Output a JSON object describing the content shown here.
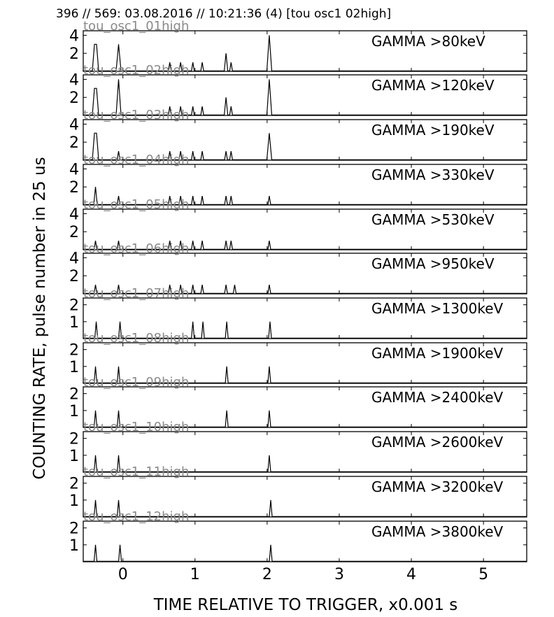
{
  "chart_data": {
    "type": "line",
    "title": "396 // 569:   03.08.2016 // 10:21:36 (4)  [tou osc1 02high]",
    "xlabel": "TIME RELATIVE TO TRIGGER,   x0.001 s",
    "ylabel": "COUNTING RATE,    pulse number in 25 us",
    "xlim": [
      -0.55,
      5.6
    ],
    "x_ticks": [
      "0",
      "1",
      "2",
      "3",
      "4",
      "5"
    ],
    "x_tick_values": [
      0,
      1,
      2,
      3,
      4,
      5
    ],
    "grid": false,
    "panels": [
      {
        "label": "GAMMA >80keV",
        "trace": "tou_osc1_01high",
        "ylim": [
          0,
          4.5
        ],
        "yticks": [
          2,
          4
        ],
        "peaks": [
          [
            -0.38,
            3
          ],
          [
            -0.06,
            3
          ],
          [
            0.65,
            1
          ],
          [
            0.8,
            1
          ],
          [
            0.97,
            1
          ],
          [
            1.1,
            1
          ],
          [
            1.43,
            2
          ],
          [
            1.5,
            1
          ],
          [
            2.03,
            4
          ]
        ]
      },
      {
        "label": "GAMMA >120keV",
        "trace": "tou_osc1_02high",
        "ylim": [
          0,
          4.5
        ],
        "yticks": [
          2,
          4
        ],
        "peaks": [
          [
            -0.38,
            3
          ],
          [
            -0.06,
            4
          ],
          [
            0.65,
            1
          ],
          [
            0.8,
            1
          ],
          [
            0.97,
            1
          ],
          [
            1.1,
            1
          ],
          [
            1.43,
            2
          ],
          [
            1.5,
            1
          ],
          [
            2.03,
            4
          ]
        ]
      },
      {
        "label": "GAMMA >190keV",
        "trace": "tou_osc1_03high",
        "ylim": [
          0,
          4.5
        ],
        "yticks": [
          2,
          4
        ],
        "peaks": [
          [
            -0.38,
            3
          ],
          [
            -0.06,
            1
          ],
          [
            0.65,
            1
          ],
          [
            0.8,
            1
          ],
          [
            0.97,
            1
          ],
          [
            1.1,
            1
          ],
          [
            1.43,
            1
          ],
          [
            1.5,
            1
          ],
          [
            2.03,
            3
          ]
        ]
      },
      {
        "label": "GAMMA >330keV",
        "trace": "tou_osc1_04high",
        "ylim": [
          0,
          4.5
        ],
        "yticks": [
          2,
          4
        ],
        "peaks": [
          [
            -0.38,
            2
          ],
          [
            -0.06,
            1
          ],
          [
            0.65,
            1
          ],
          [
            0.8,
            1
          ],
          [
            0.97,
            1
          ],
          [
            1.1,
            1
          ],
          [
            1.43,
            1
          ],
          [
            1.5,
            1
          ],
          [
            2.03,
            1
          ]
        ]
      },
      {
        "label": "GAMMA >530keV",
        "trace": "tou_osc1_05high",
        "ylim": [
          0,
          4.5
        ],
        "yticks": [
          2,
          4
        ],
        "peaks": [
          [
            -0.38,
            1
          ],
          [
            -0.06,
            1
          ],
          [
            0.65,
            1
          ],
          [
            0.8,
            1
          ],
          [
            0.97,
            1
          ],
          [
            1.1,
            1
          ],
          [
            1.43,
            1
          ],
          [
            1.5,
            1
          ],
          [
            2.03,
            1
          ]
        ]
      },
      {
        "label": "GAMMA >950keV",
        "trace": "tou_osc1_06high",
        "ylim": [
          0,
          4.5
        ],
        "yticks": [
          2,
          4
        ],
        "peaks": [
          [
            -0.38,
            1
          ],
          [
            -0.06,
            1
          ],
          [
            0.65,
            1
          ],
          [
            0.8,
            1
          ],
          [
            0.97,
            1
          ],
          [
            1.1,
            1
          ],
          [
            1.43,
            1
          ],
          [
            1.55,
            1
          ],
          [
            2.03,
            1
          ]
        ]
      },
      {
        "label": "GAMMA >1300keV",
        "trace": "tou_osc1_07high",
        "ylim": [
          0,
          2.4
        ],
        "yticks": [
          1,
          2
        ],
        "peaks": [
          [
            -0.37,
            1
          ],
          [
            -0.04,
            1
          ],
          [
            0.97,
            1
          ],
          [
            1.11,
            1
          ],
          [
            1.44,
            1
          ],
          [
            2.04,
            1
          ]
        ]
      },
      {
        "label": "GAMMA >1900keV",
        "trace": "tou_osc1_08high",
        "ylim": [
          0,
          2.4
        ],
        "yticks": [
          1,
          2
        ],
        "peaks": [
          [
            -0.38,
            1
          ],
          [
            -0.06,
            1
          ],
          [
            1.44,
            1
          ],
          [
            2.03,
            1
          ]
        ]
      },
      {
        "label": "GAMMA >2400keV",
        "trace": "tou_osc1_09high",
        "ylim": [
          0,
          2.4
        ],
        "yticks": [
          1,
          2
        ],
        "peaks": [
          [
            -0.38,
            1
          ],
          [
            -0.06,
            1
          ],
          [
            1.44,
            1
          ],
          [
            2.03,
            1
          ]
        ]
      },
      {
        "label": "GAMMA >2600keV",
        "trace": "tou_osc1_10high",
        "ylim": [
          0,
          2.4
        ],
        "yticks": [
          1,
          2
        ],
        "peaks": [
          [
            -0.38,
            1
          ],
          [
            -0.06,
            1
          ],
          [
            2.03,
            1
          ]
        ]
      },
      {
        "label": "GAMMA >3200keV",
        "trace": "tou_osc1_11high",
        "ylim": [
          0,
          2.4
        ],
        "yticks": [
          1,
          2
        ],
        "peaks": [
          [
            -0.38,
            1
          ],
          [
            -0.06,
            1
          ],
          [
            2.05,
            1
          ]
        ]
      },
      {
        "label": "GAMMA >3800keV",
        "trace": "tou_osc1_12high",
        "ylim": [
          0,
          2.4
        ],
        "yticks": [
          1,
          2
        ],
        "peaks": [
          [
            -0.38,
            1
          ],
          [
            -0.04,
            1
          ],
          [
            2.05,
            1
          ]
        ]
      }
    ]
  }
}
